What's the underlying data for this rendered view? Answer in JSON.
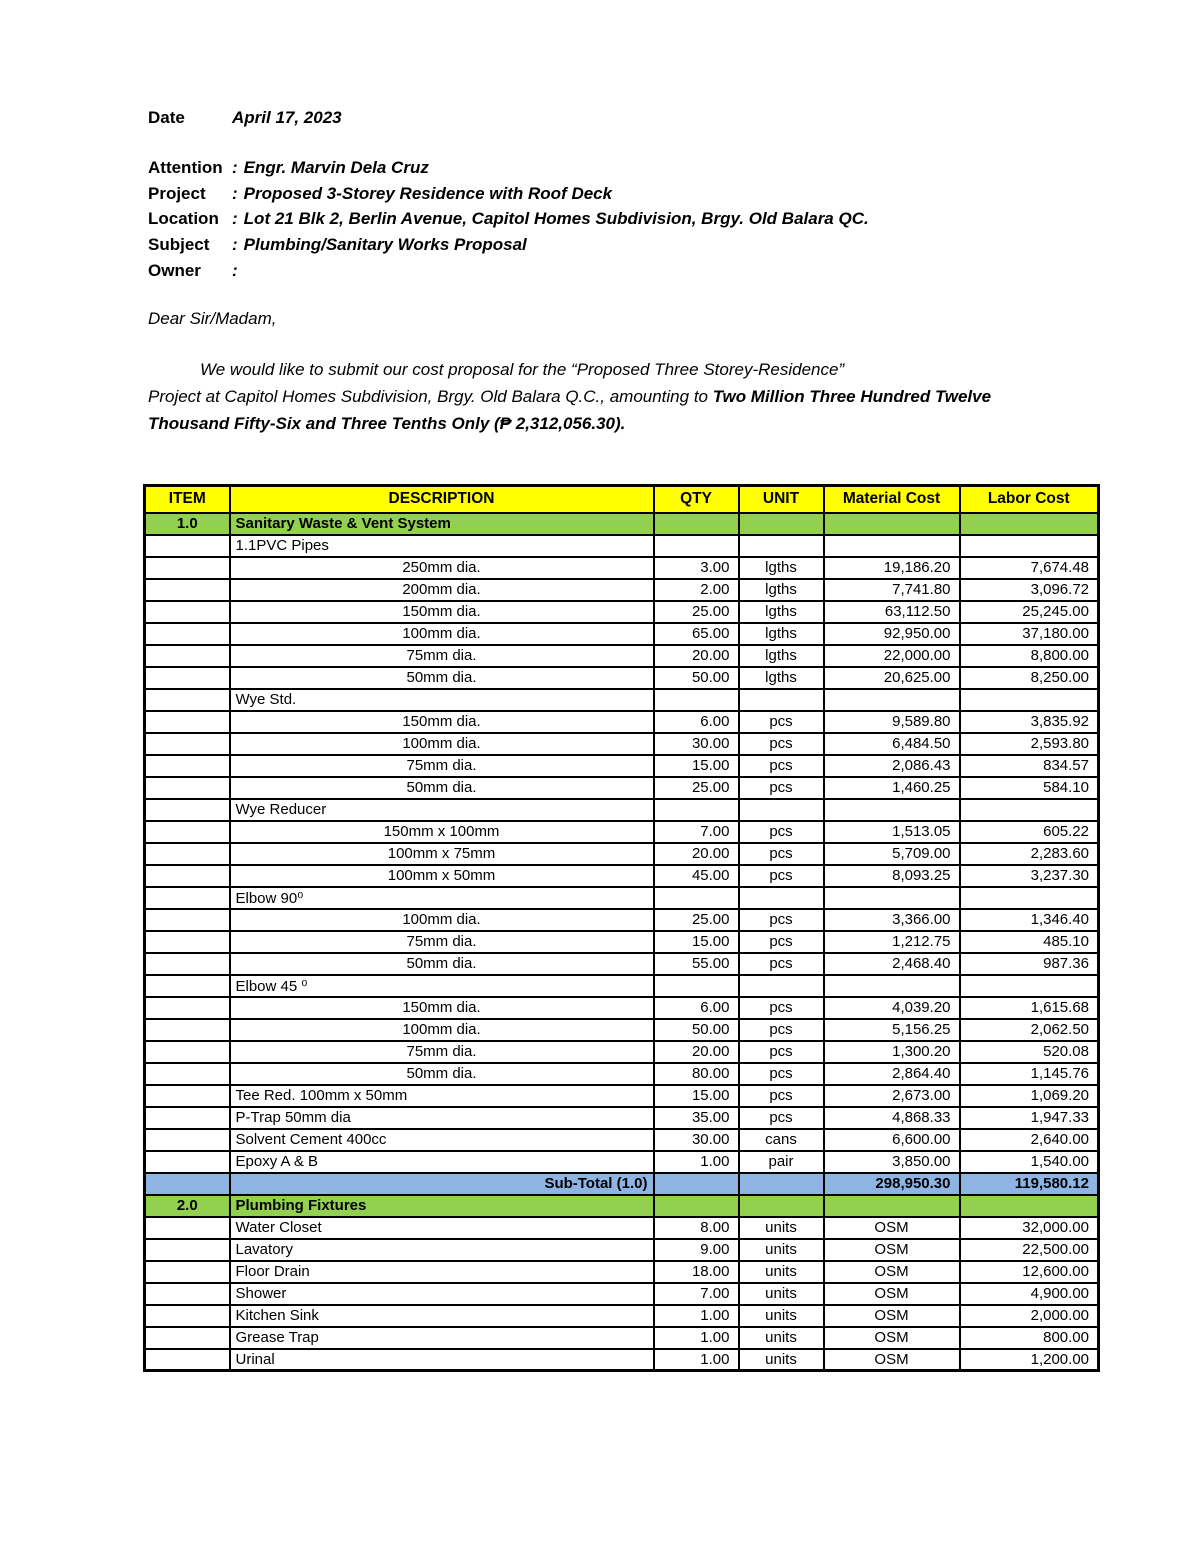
{
  "document": {
    "date": {
      "label": "Date",
      "value": "April 17, 2023"
    },
    "colon": ":",
    "fields": [
      {
        "label": "Attention",
        "value": "Engr. Marvin Dela Cruz"
      },
      {
        "label": "Project",
        "value": "Proposed 3-Storey Residence with Roof Deck"
      },
      {
        "label": "Location",
        "value": "Lot 21 Blk 2, Berlin Avenue, Capitol Homes Subdivision, Brgy. Old Balara QC."
      },
      {
        "label": "Subject",
        "value": "Plumbing/Sanitary Works Proposal"
      },
      {
        "label": "Owner",
        "value": ""
      }
    ],
    "salutation": "Dear Sir/Madam,",
    "body": {
      "line1": "We would like to submit our cost proposal for the “Proposed Three Storey-Residence”",
      "line2_regular": "Project at Capitol Homes Subdivision, Brgy. Old Balara Q.C., amounting to ",
      "line2_bold": "Two Million Three Hundred Twelve",
      "line3_bold": "Thousand Fifty-Six and Three Tenths Only (₱ 2,312,056.30)."
    }
  },
  "colors": {
    "header_bg": "#FFFF00",
    "section_bg": "#92D050",
    "subtotal_bg": "#8DB4E2",
    "border": "#000000"
  },
  "table": {
    "headers": [
      "ITEM",
      "DESCRIPTION",
      "QTY",
      "UNIT",
      "Material Cost",
      "Labor Cost"
    ],
    "rows": [
      {
        "type": "section",
        "item": "1.0",
        "desc": "Sanitary Waste & Vent System",
        "qty": "",
        "unit": "",
        "material": "",
        "labor": ""
      },
      {
        "type": "group",
        "item": "",
        "desc": "1.1PVC Pipes",
        "qty": "",
        "unit": "",
        "material": "",
        "labor": ""
      },
      {
        "type": "item",
        "align": "center",
        "item": "",
        "desc": "250mm dia.",
        "qty": "3.00",
        "unit": "lgths",
        "material": "19,186.20",
        "labor": "7,674.48"
      },
      {
        "type": "item",
        "align": "center",
        "item": "",
        "desc": "200mm dia.",
        "qty": "2.00",
        "unit": "lgths",
        "material": "7,741.80",
        "labor": "3,096.72"
      },
      {
        "type": "item",
        "align": "center",
        "item": "",
        "desc": "150mm dia.",
        "qty": "25.00",
        "unit": "lgths",
        "material": "63,112.50",
        "labor": "25,245.00"
      },
      {
        "type": "item",
        "align": "center",
        "item": "",
        "desc": "100mm dia.",
        "qty": "65.00",
        "unit": "lgths",
        "material": "92,950.00",
        "labor": "37,180.00"
      },
      {
        "type": "item",
        "align": "center",
        "item": "",
        "desc": "75mm dia.",
        "qty": "20.00",
        "unit": "lgths",
        "material": "22,000.00",
        "labor": "8,800.00"
      },
      {
        "type": "item",
        "align": "center",
        "item": "",
        "desc": "50mm dia.",
        "qty": "50.00",
        "unit": "lgths",
        "material": "20,625.00",
        "labor": "8,250.00"
      },
      {
        "type": "group",
        "item": "",
        "desc": "Wye Std.",
        "qty": "",
        "unit": "",
        "material": "",
        "labor": ""
      },
      {
        "type": "item",
        "align": "center",
        "item": "",
        "desc": "150mm dia.",
        "qty": "6.00",
        "unit": "pcs",
        "material": "9,589.80",
        "labor": "3,835.92"
      },
      {
        "type": "item",
        "align": "center",
        "item": "",
        "desc": "100mm dia.",
        "qty": "30.00",
        "unit": "pcs",
        "material": "6,484.50",
        "labor": "2,593.80"
      },
      {
        "type": "item",
        "align": "center",
        "item": "",
        "desc": "75mm dia.",
        "qty": "15.00",
        "unit": "pcs",
        "material": "2,086.43",
        "labor": "834.57"
      },
      {
        "type": "item",
        "align": "center",
        "item": "",
        "desc": "50mm dia.",
        "qty": "25.00",
        "unit": "pcs",
        "material": "1,460.25",
        "labor": "584.10"
      },
      {
        "type": "group",
        "item": "",
        "desc": "Wye Reducer",
        "qty": "",
        "unit": "",
        "material": "",
        "labor": ""
      },
      {
        "type": "item",
        "align": "center",
        "item": "",
        "desc": "150mm x 100mm",
        "qty": "7.00",
        "unit": "pcs",
        "material": "1,513.05",
        "labor": "605.22"
      },
      {
        "type": "item",
        "align": "center",
        "item": "",
        "desc": "100mm x 75mm",
        "qty": "20.00",
        "unit": "pcs",
        "material": "5,709.00",
        "labor": "2,283.60"
      },
      {
        "type": "item",
        "align": "center",
        "item": "",
        "desc": "100mm x 50mm",
        "qty": "45.00",
        "unit": "pcs",
        "material": "8,093.25",
        "labor": "3,237.30"
      },
      {
        "type": "group",
        "item": "",
        "desc": "Elbow 90⁰",
        "qty": "",
        "unit": "",
        "material": "",
        "labor": ""
      },
      {
        "type": "item",
        "align": "center",
        "item": "",
        "desc": "100mm dia.",
        "qty": "25.00",
        "unit": "pcs",
        "material": "3,366.00",
        "labor": "1,346.40"
      },
      {
        "type": "item",
        "align": "center",
        "item": "",
        "desc": "75mm dia.",
        "qty": "15.00",
        "unit": "pcs",
        "material": "1,212.75",
        "labor": "485.10"
      },
      {
        "type": "item",
        "align": "center",
        "item": "",
        "desc": "50mm dia.",
        "qty": "55.00",
        "unit": "pcs",
        "material": "2,468.40",
        "labor": "987.36"
      },
      {
        "type": "group",
        "item": "",
        "desc": "Elbow 45 ⁰",
        "qty": "",
        "unit": "",
        "material": "",
        "labor": ""
      },
      {
        "type": "item",
        "align": "center",
        "item": "",
        "desc": "150mm dia.",
        "qty": "6.00",
        "unit": "pcs",
        "material": "4,039.20",
        "labor": "1,615.68"
      },
      {
        "type": "item",
        "align": "center",
        "item": "",
        "desc": "100mm dia.",
        "qty": "50.00",
        "unit": "pcs",
        "material": "5,156.25",
        "labor": "2,062.50"
      },
      {
        "type": "item",
        "align": "center",
        "item": "",
        "desc": "75mm dia.",
        "qty": "20.00",
        "unit": "pcs",
        "material": "1,300.20",
        "labor": "520.08"
      },
      {
        "type": "item",
        "align": "center",
        "item": "",
        "desc": "50mm dia.",
        "qty": "80.00",
        "unit": "pcs",
        "material": "2,864.40",
        "labor": "1,145.76"
      },
      {
        "type": "item",
        "item": "",
        "desc": "Tee Red. 100mm x 50mm",
        "qty": "15.00",
        "unit": "pcs",
        "material": "2,673.00",
        "labor": "1,069.20"
      },
      {
        "type": "item",
        "item": "",
        "desc": "P-Trap 50mm dia",
        "qty": "35.00",
        "unit": "pcs",
        "material": "4,868.33",
        "labor": "1,947.33"
      },
      {
        "type": "item",
        "item": "",
        "desc": "Solvent Cement 400cc",
        "qty": "30.00",
        "unit": "cans",
        "material": "6,600.00",
        "labor": "2,640.00"
      },
      {
        "type": "item",
        "item": "",
        "desc": "Epoxy A & B",
        "qty": "1.00",
        "unit": "pair",
        "material": "3,850.00",
        "labor": "1,540.00"
      },
      {
        "type": "subtotal",
        "align": "right",
        "item": "",
        "desc": "Sub-Total (1.0)",
        "qty": "",
        "unit": "",
        "material": "298,950.30",
        "labor": "119,580.12"
      },
      {
        "type": "section",
        "item": "2.0",
        "desc": "Plumbing Fixtures",
        "qty": "",
        "unit": "",
        "material": "",
        "labor": ""
      },
      {
        "type": "item",
        "item": "",
        "desc": "Water Closet",
        "qty": "8.00",
        "unit": "units",
        "material": "OSM",
        "mat_align": "center",
        "labor": "32,000.00"
      },
      {
        "type": "item",
        "item": "",
        "desc": "Lavatory",
        "qty": "9.00",
        "unit": "units",
        "material": "OSM",
        "mat_align": "center",
        "labor": "22,500.00"
      },
      {
        "type": "item",
        "item": "",
        "desc": "Floor Drain",
        "qty": "18.00",
        "unit": "units",
        "material": "OSM",
        "mat_align": "center",
        "labor": "12,600.00"
      },
      {
        "type": "item",
        "item": "",
        "desc": "Shower",
        "qty": "7.00",
        "unit": "units",
        "material": "OSM",
        "mat_align": "center",
        "labor": "4,900.00"
      },
      {
        "type": "item",
        "item": "",
        "desc": "Kitchen Sink",
        "qty": "1.00",
        "unit": "units",
        "material": "OSM",
        "mat_align": "center",
        "labor": "2,000.00"
      },
      {
        "type": "item",
        "item": "",
        "desc": "Grease Trap",
        "qty": "1.00",
        "unit": "units",
        "material": "OSM",
        "mat_align": "center",
        "labor": "800.00"
      },
      {
        "type": "item",
        "item": "",
        "desc": "Urinal",
        "qty": "1.00",
        "unit": "units",
        "material": "OSM",
        "mat_align": "center",
        "labor": "1,200.00"
      }
    ]
  }
}
